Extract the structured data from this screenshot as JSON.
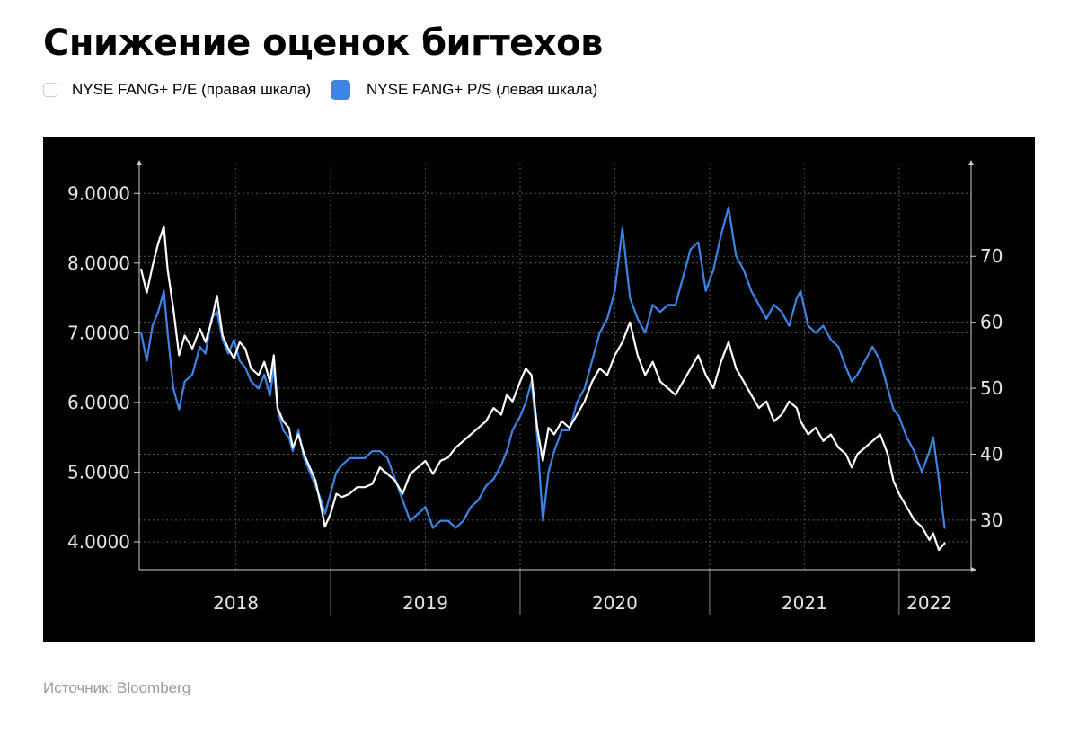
{
  "title": "Снижение оценок бигтехов",
  "legend": [
    {
      "label": "NYSE FANG+ P/E (правая шкала)",
      "color": "#ffffff"
    },
    {
      "label": "NYSE FANG+ P/S (левая шкала)",
      "color": "#3d84e6"
    }
  ],
  "source": "Источник: Bloomberg",
  "chart_data": {
    "type": "line",
    "x_unit": "year",
    "x_axis_labels": [
      {
        "label": "2018",
        "x": 2018.5
      },
      {
        "label": "2019",
        "x": 2019.5
      },
      {
        "label": "2020",
        "x": 2020.5
      },
      {
        "label": "2021",
        "x": 2021.5
      },
      {
        "label": "2022",
        "x": 2022.16
      }
    ],
    "x_year_boundaries": [
      2019.0,
      2020.0,
      2021.0,
      2022.0
    ],
    "xlim": [
      2017.99,
      2022.38
    ],
    "left_axis": {
      "ylim": [
        3.6,
        9.3
      ],
      "ticks": [
        4,
        5,
        6,
        7,
        8,
        9
      ],
      "tick_labels": [
        "4.0000",
        "5.0000",
        "6.0000",
        "7.0000",
        "8.0000",
        "9.0000"
      ]
    },
    "right_axis": {
      "ylim": [
        22.5,
        82.7
      ],
      "ticks": [
        30,
        40,
        50,
        60,
        70
      ],
      "tick_labels": [
        "30",
        "40",
        "50",
        "60",
        "70"
      ]
    },
    "grid": true,
    "series": [
      {
        "name": "NYSE FANG+ P/E (правая шкала)",
        "axis": "right",
        "color": "#ffffff",
        "points": [
          [
            2018.0,
            68.0
          ],
          [
            2018.03,
            64.5
          ],
          [
            2018.06,
            68.5
          ],
          [
            2018.09,
            72.0
          ],
          [
            2018.12,
            74.5
          ],
          [
            2018.14,
            68.0
          ],
          [
            2018.17,
            62.0
          ],
          [
            2018.2,
            55.0
          ],
          [
            2018.23,
            58.0
          ],
          [
            2018.27,
            56.0
          ],
          [
            2018.31,
            59.0
          ],
          [
            2018.34,
            57.0
          ],
          [
            2018.37,
            60.0
          ],
          [
            2018.4,
            64.0
          ],
          [
            2018.43,
            58.0
          ],
          [
            2018.46,
            56.0
          ],
          [
            2018.49,
            54.5
          ],
          [
            2018.52,
            57.0
          ],
          [
            2018.55,
            56.0
          ],
          [
            2018.58,
            53.0
          ],
          [
            2018.62,
            52.0
          ],
          [
            2018.65,
            54.0
          ],
          [
            2018.68,
            51.0
          ],
          [
            2018.7,
            55.0
          ],
          [
            2018.72,
            47.0
          ],
          [
            2018.75,
            45.0
          ],
          [
            2018.78,
            44.0
          ],
          [
            2018.8,
            41.0
          ],
          [
            2018.83,
            43.0
          ],
          [
            2018.86,
            40.0
          ],
          [
            2018.89,
            38.0
          ],
          [
            2018.92,
            36.0
          ],
          [
            2018.95,
            32.0
          ],
          [
            2018.97,
            29.0
          ],
          [
            2019.0,
            31.0
          ],
          [
            2019.03,
            34.0
          ],
          [
            2019.06,
            33.5
          ],
          [
            2019.1,
            34.0
          ],
          [
            2019.14,
            35.0
          ],
          [
            2019.18,
            35.0
          ],
          [
            2019.22,
            35.5
          ],
          [
            2019.26,
            38.0
          ],
          [
            2019.3,
            37.0
          ],
          [
            2019.34,
            36.0
          ],
          [
            2019.38,
            34.0
          ],
          [
            2019.42,
            37.0
          ],
          [
            2019.46,
            38.0
          ],
          [
            2019.5,
            39.0
          ],
          [
            2019.54,
            37.0
          ],
          [
            2019.58,
            39.0
          ],
          [
            2019.62,
            39.5
          ],
          [
            2019.66,
            41.0
          ],
          [
            2019.7,
            42.0
          ],
          [
            2019.74,
            43.0
          ],
          [
            2019.78,
            44.0
          ],
          [
            2019.82,
            45.0
          ],
          [
            2019.86,
            47.0
          ],
          [
            2019.9,
            46.0
          ],
          [
            2019.93,
            49.0
          ],
          [
            2019.96,
            48.0
          ],
          [
            2020.0,
            51.0
          ],
          [
            2020.03,
            53.0
          ],
          [
            2020.06,
            52.0
          ],
          [
            2020.09,
            44.0
          ],
          [
            2020.12,
            39.0
          ],
          [
            2020.15,
            44.0
          ],
          [
            2020.18,
            43.0
          ],
          [
            2020.22,
            45.0
          ],
          [
            2020.26,
            44.0
          ],
          [
            2020.3,
            46.0
          ],
          [
            2020.34,
            48.0
          ],
          [
            2020.38,
            51.0
          ],
          [
            2020.42,
            53.0
          ],
          [
            2020.46,
            52.0
          ],
          [
            2020.5,
            55.0
          ],
          [
            2020.54,
            57.0
          ],
          [
            2020.58,
            60.0
          ],
          [
            2020.62,
            55.0
          ],
          [
            2020.66,
            52.0
          ],
          [
            2020.7,
            54.0
          ],
          [
            2020.74,
            51.0
          ],
          [
            2020.78,
            50.0
          ],
          [
            2020.82,
            49.0
          ],
          [
            2020.86,
            51.0
          ],
          [
            2020.9,
            53.0
          ],
          [
            2020.94,
            55.0
          ],
          [
            2020.98,
            52.0
          ],
          [
            2021.02,
            50.0
          ],
          [
            2021.06,
            54.0
          ],
          [
            2021.1,
            57.0
          ],
          [
            2021.14,
            53.0
          ],
          [
            2021.18,
            51.0
          ],
          [
            2021.22,
            49.0
          ],
          [
            2021.26,
            47.0
          ],
          [
            2021.3,
            48.0
          ],
          [
            2021.34,
            45.0
          ],
          [
            2021.38,
            46.0
          ],
          [
            2021.42,
            48.0
          ],
          [
            2021.46,
            47.0
          ],
          [
            2021.48,
            45.0
          ],
          [
            2021.52,
            43.0
          ],
          [
            2021.56,
            44.0
          ],
          [
            2021.6,
            42.0
          ],
          [
            2021.64,
            43.0
          ],
          [
            2021.68,
            41.0
          ],
          [
            2021.72,
            40.0
          ],
          [
            2021.75,
            38.0
          ],
          [
            2021.78,
            40.0
          ],
          [
            2021.82,
            41.0
          ],
          [
            2021.86,
            42.0
          ],
          [
            2021.9,
            43.0
          ],
          [
            2021.94,
            40.0
          ],
          [
            2021.97,
            36.0
          ],
          [
            2022.0,
            34.0
          ],
          [
            2022.04,
            32.0
          ],
          [
            2022.08,
            30.0
          ],
          [
            2022.12,
            29.0
          ],
          [
            2022.16,
            27.0
          ],
          [
            2022.18,
            28.0
          ],
          [
            2022.21,
            25.5
          ],
          [
            2022.24,
            26.5
          ]
        ]
      },
      {
        "name": "NYSE FANG+ P/S (левая шкала)",
        "axis": "left",
        "color": "#3d84e6",
        "points": [
          [
            2018.0,
            7.0
          ],
          [
            2018.03,
            6.6
          ],
          [
            2018.06,
            7.1
          ],
          [
            2018.09,
            7.3
          ],
          [
            2018.12,
            7.6
          ],
          [
            2018.14,
            7.0
          ],
          [
            2018.17,
            6.2
          ],
          [
            2018.2,
            5.9
          ],
          [
            2018.23,
            6.3
          ],
          [
            2018.27,
            6.4
          ],
          [
            2018.31,
            6.8
          ],
          [
            2018.34,
            6.7
          ],
          [
            2018.37,
            7.2
          ],
          [
            2018.4,
            7.3
          ],
          [
            2018.43,
            6.9
          ],
          [
            2018.46,
            6.7
          ],
          [
            2018.49,
            6.9
          ],
          [
            2018.52,
            6.6
          ],
          [
            2018.55,
            6.5
          ],
          [
            2018.58,
            6.3
          ],
          [
            2018.62,
            6.2
          ],
          [
            2018.65,
            6.4
          ],
          [
            2018.68,
            6.1
          ],
          [
            2018.7,
            6.5
          ],
          [
            2018.72,
            5.9
          ],
          [
            2018.75,
            5.6
          ],
          [
            2018.78,
            5.5
          ],
          [
            2018.8,
            5.3
          ],
          [
            2018.83,
            5.6
          ],
          [
            2018.86,
            5.2
          ],
          [
            2018.89,
            5.0
          ],
          [
            2018.92,
            4.8
          ],
          [
            2018.95,
            4.6
          ],
          [
            2018.97,
            4.4
          ],
          [
            2019.0,
            4.7
          ],
          [
            2019.03,
            5.0
          ],
          [
            2019.06,
            5.1
          ],
          [
            2019.1,
            5.2
          ],
          [
            2019.14,
            5.2
          ],
          [
            2019.18,
            5.2
          ],
          [
            2019.22,
            5.3
          ],
          [
            2019.26,
            5.3
          ],
          [
            2019.3,
            5.2
          ],
          [
            2019.34,
            4.9
          ],
          [
            2019.38,
            4.6
          ],
          [
            2019.42,
            4.3
          ],
          [
            2019.46,
            4.4
          ],
          [
            2019.5,
            4.5
          ],
          [
            2019.54,
            4.2
          ],
          [
            2019.58,
            4.3
          ],
          [
            2019.62,
            4.3
          ],
          [
            2019.66,
            4.2
          ],
          [
            2019.7,
            4.3
          ],
          [
            2019.74,
            4.5
          ],
          [
            2019.78,
            4.6
          ],
          [
            2019.82,
            4.8
          ],
          [
            2019.86,
            4.9
          ],
          [
            2019.9,
            5.1
          ],
          [
            2019.93,
            5.3
          ],
          [
            2019.96,
            5.6
          ],
          [
            2020.0,
            5.8
          ],
          [
            2020.03,
            6.0
          ],
          [
            2020.06,
            6.3
          ],
          [
            2020.09,
            5.5
          ],
          [
            2020.12,
            4.3
          ],
          [
            2020.15,
            5.0
          ],
          [
            2020.18,
            5.3
          ],
          [
            2020.22,
            5.6
          ],
          [
            2020.26,
            5.6
          ],
          [
            2020.3,
            6.0
          ],
          [
            2020.34,
            6.2
          ],
          [
            2020.38,
            6.6
          ],
          [
            2020.42,
            7.0
          ],
          [
            2020.46,
            7.2
          ],
          [
            2020.5,
            7.6
          ],
          [
            2020.54,
            8.5
          ],
          [
            2020.58,
            7.5
          ],
          [
            2020.62,
            7.2
          ],
          [
            2020.66,
            7.0
          ],
          [
            2020.7,
            7.4
          ],
          [
            2020.74,
            7.3
          ],
          [
            2020.78,
            7.4
          ],
          [
            2020.82,
            7.4
          ],
          [
            2020.86,
            7.8
          ],
          [
            2020.9,
            8.2
          ],
          [
            2020.94,
            8.3
          ],
          [
            2020.98,
            7.6
          ],
          [
            2021.02,
            7.9
          ],
          [
            2021.06,
            8.4
          ],
          [
            2021.1,
            8.8
          ],
          [
            2021.14,
            8.1
          ],
          [
            2021.18,
            7.9
          ],
          [
            2021.22,
            7.6
          ],
          [
            2021.26,
            7.4
          ],
          [
            2021.3,
            7.2
          ],
          [
            2021.34,
            7.4
          ],
          [
            2021.38,
            7.3
          ],
          [
            2021.42,
            7.1
          ],
          [
            2021.46,
            7.5
          ],
          [
            2021.48,
            7.6
          ],
          [
            2021.52,
            7.1
          ],
          [
            2021.56,
            7.0
          ],
          [
            2021.6,
            7.1
          ],
          [
            2021.64,
            6.9
          ],
          [
            2021.68,
            6.8
          ],
          [
            2021.72,
            6.5
          ],
          [
            2021.75,
            6.3
          ],
          [
            2021.78,
            6.4
          ],
          [
            2021.82,
            6.6
          ],
          [
            2021.86,
            6.8
          ],
          [
            2021.9,
            6.6
          ],
          [
            2021.94,
            6.2
          ],
          [
            2021.97,
            5.9
          ],
          [
            2022.0,
            5.8
          ],
          [
            2022.04,
            5.5
          ],
          [
            2022.08,
            5.3
          ],
          [
            2022.12,
            5.0
          ],
          [
            2022.16,
            5.3
          ],
          [
            2022.18,
            5.5
          ],
          [
            2022.21,
            4.9
          ],
          [
            2022.24,
            4.2
          ]
        ]
      }
    ]
  }
}
